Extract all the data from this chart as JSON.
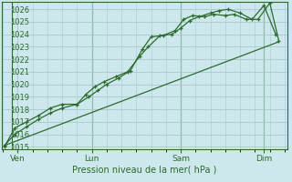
{
  "bg_color": "#cce8ec",
  "grid_color": "#aac8cc",
  "line_color": "#2d6a2d",
  "marker_color": "#2d6a2d",
  "xlabel": "Pression niveau de la mer( hPa )",
  "yticks": [
    1015,
    1016,
    1017,
    1018,
    1019,
    1020,
    1021,
    1022,
    1023,
    1024,
    1025,
    1026
  ],
  "ylim": [
    1014.8,
    1026.6
  ],
  "xlim": [
    -0.05,
    9.6
  ],
  "xtick_labels": [
    "Ven",
    "Lun",
    "Sam",
    "Dim"
  ],
  "xtick_positions": [
    0.5,
    3.0,
    6.0,
    8.8
  ],
  "vline_positions": [
    0.3,
    3.0,
    6.0,
    8.8
  ],
  "series1_x": [
    0.05,
    0.4,
    0.8,
    1.2,
    1.6,
    2.0,
    2.5,
    2.8,
    3.1,
    3.4,
    3.8,
    4.2,
    4.6,
    4.9,
    5.3,
    5.7,
    6.0,
    6.3,
    6.6,
    7.0,
    7.3,
    7.6,
    8.0,
    8.4,
    8.8,
    9.2
  ],
  "series1_y": [
    1015.1,
    1016.0,
    1016.6,
    1017.2,
    1017.7,
    1018.1,
    1018.4,
    1019.2,
    1019.8,
    1020.2,
    1020.6,
    1021.0,
    1022.2,
    1023.0,
    1023.9,
    1024.0,
    1024.5,
    1025.1,
    1025.4,
    1025.7,
    1025.9,
    1026.0,
    1025.7,
    1025.2,
    1026.3,
    1024.0
  ],
  "series2_x": [
    0.05,
    0.4,
    0.8,
    1.2,
    1.6,
    2.0,
    2.5,
    2.9,
    3.2,
    3.5,
    3.9,
    4.3,
    4.7,
    5.0,
    5.4,
    5.8,
    6.1,
    6.4,
    6.8,
    7.1,
    7.5,
    7.8,
    8.2,
    8.6,
    9.0,
    9.3
  ],
  "series2_y": [
    1015.0,
    1016.5,
    1017.0,
    1017.5,
    1018.1,
    1018.4,
    1018.4,
    1019.0,
    1019.5,
    1020.0,
    1020.5,
    1021.1,
    1022.8,
    1023.8,
    1023.9,
    1024.3,
    1025.2,
    1025.5,
    1025.4,
    1025.6,
    1025.5,
    1025.6,
    1025.2,
    1025.2,
    1026.5,
    1023.5
  ],
  "series3_x": [
    0.05,
    9.3
  ],
  "series3_y": [
    1015.1,
    1023.4
  ]
}
